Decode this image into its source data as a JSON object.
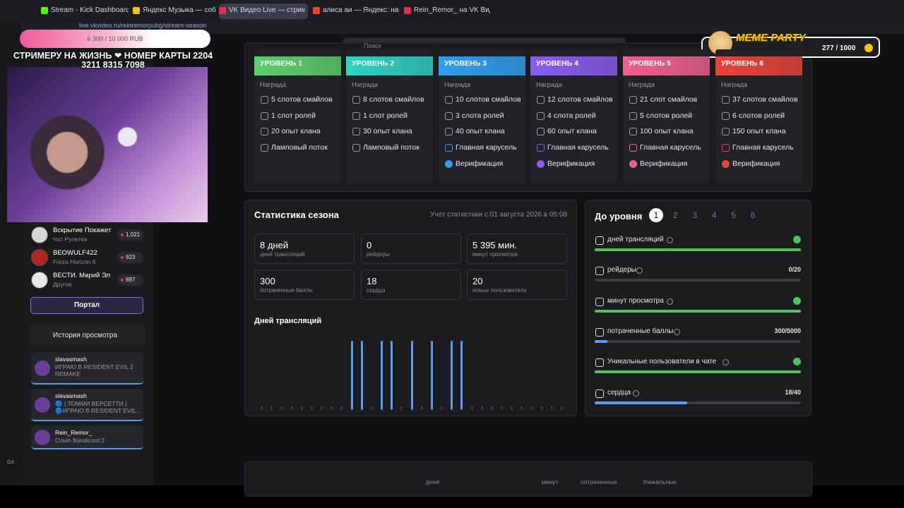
{
  "browser": {
    "tabs": [
      "Stream - Kick Dashboard",
      "Яндекс Музыка — соб",
      "VK Видео Live — стримы,",
      "алиса аи — Яндекс: нашл",
      "Rein_Remor_ на VK Видео"
    ],
    "url": "live.vkvideo.ru/reinremorpubg/stream-season"
  },
  "search_placeholder": "Поиск",
  "overlay": {
    "goal": "6 300 / 10 000 RUB",
    "message_line_1": "СТРИМЕРУ НА ЖИЗНЬ ❤ НОМЕР КАРТЫ 2204",
    "message_line_2": "3211 8315 7098",
    "widget_title": "MEME PARTY",
    "widget_count": "277 / 1000"
  },
  "levels": [
    {
      "title": "УРОВЕНЬ 1",
      "color": "#5ccf6c",
      "reward_label": "Награда",
      "items": [
        "5 слотов смайлов",
        "1 слот ролей",
        "20 опыт клана",
        "Ламповый поток"
      ]
    },
    {
      "title": "УРОВЕНЬ 2",
      "color": "#2fd3c2",
      "reward_label": "Награда",
      "items": [
        "8 слотов смайлов",
        "1 слот ролей",
        "30 опыт клана",
        "Ламповый поток"
      ]
    },
    {
      "title": "УРОВЕНЬ 3",
      "color": "#2f9ff0",
      "reward_label": "Награда",
      "items": [
        "10 слотов смайлов",
        "3 слота ролей",
        "40 опыт клана",
        "Главная карусель",
        "Верификация"
      ]
    },
    {
      "title": "УРОВЕНЬ 4",
      "color": "#8b5cf0",
      "reward_label": "Награда",
      "items": [
        "12 слотов смайлов",
        "4 слота ролей",
        "60 опыт клана",
        "Главная карусель",
        "Верификация"
      ]
    },
    {
      "title": "УРОВЕНЬ 5",
      "color": "#f0608e",
      "reward_label": "Награда",
      "items": [
        "21 слот смайлов",
        "5 слотов ролей",
        "100 опыт клана",
        "Главная карусель",
        "Верификация"
      ]
    },
    {
      "title": "УРОВЕНЬ 6",
      "color": "#e8433a",
      "reward_label": "Награда",
      "items": [
        "37 слотов смайлов",
        "6 слотов ролей",
        "150 опыт клана",
        "Главная карусель",
        "Верификация"
      ]
    }
  ],
  "season_stats": {
    "title": "Статистика сезона",
    "note": "Учет статистики с 01 августа 2026 в 05:08",
    "tiles": [
      {
        "value": "8 дней",
        "label": "дней трансляций"
      },
      {
        "value": "0",
        "label": "рейдеры"
      },
      {
        "value": "5 395 мин.",
        "label": "минут просмотра"
      },
      {
        "value": "300",
        "label": "потраченные баллы"
      },
      {
        "value": "18",
        "label": "сердца"
      },
      {
        "value": "20",
        "label": "новые пользователи"
      }
    ],
    "chart": {
      "type": "bar",
      "title": "Дней трансляций",
      "color": "#5b9bf0",
      "values": [
        0,
        0,
        0,
        0,
        0,
        0,
        0,
        0,
        0,
        1,
        1,
        0,
        1,
        1,
        0,
        1,
        0,
        1,
        0,
        1,
        1,
        0,
        0,
        0,
        0,
        0,
        0,
        0,
        0,
        0,
        0
      ]
    }
  },
  "progress": {
    "title": "До уровня",
    "levels": [
      1,
      2,
      3,
      4,
      5,
      6
    ],
    "active": 1,
    "items": [
      {
        "label": "дней трансляций",
        "complete": true
      },
      {
        "label": "рейдеры",
        "value": 0,
        "max": 20,
        "value_label": "0/20"
      },
      {
        "label": "минут просмотра",
        "complete": true
      },
      {
        "label": "потраченные баллы",
        "value": 300,
        "max": 5000,
        "value_label": "300/5000"
      },
      {
        "label": "Уникальные пользователи в чате",
        "complete": true
      },
      {
        "label": "сердца",
        "value": 18,
        "max": 40,
        "value_label": "18/40"
      }
    ]
  },
  "sidebar": {
    "channels": [
      {
        "name": "Вскрытие Покажет",
        "category": "Чат Рулетка",
        "viewers": "1,021"
      },
      {
        "name": "BEOWULF422",
        "category": "Forza Horizon 6",
        "viewers": "923"
      },
      {
        "name": "ВЕСТИ. Марий Эл",
        "category": "Другое",
        "viewers": "887"
      }
    ],
    "portal": "Портал",
    "history": "История просмотра",
    "recent": [
      {
        "name": "slavasmash",
        "title_1": "ИГРАЮ В RESIDENT EVIL 2",
        "title_2": "REMAKE"
      },
      {
        "name": "slavasmash",
        "title_1": "🔵 | ТОММИ ВЕРСЕТТИ |",
        "title_2": "🔵ИГРАЮ В RESIDENT EVIL..."
      },
      {
        "name": "Rein_Remor_",
        "title_1": "Crash Bandicoot:3"
      }
    ],
    "gx": "GX"
  },
  "table_headers": [
    "дней",
    "минут",
    "потраченные",
    "Уникальные"
  ]
}
